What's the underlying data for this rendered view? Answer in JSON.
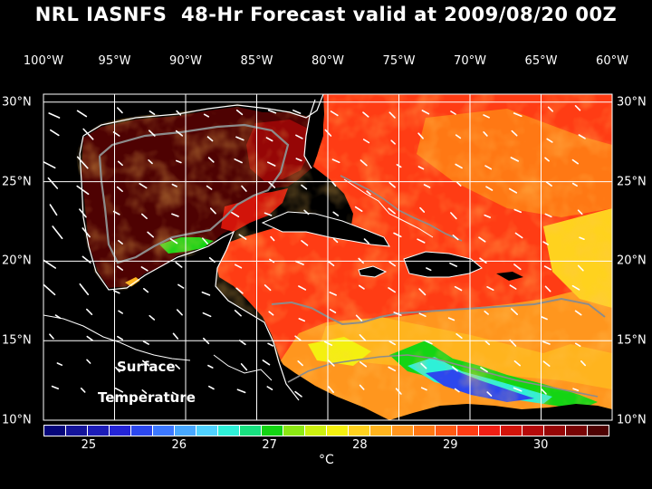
{
  "title": "NRL IASNFS  48-Hr Forecast valid at 2009/08/20 00Z",
  "map": {
    "variable_label_line1": "Surface",
    "variable_label_line2": "Temperature",
    "lon_labels": [
      "100°W",
      "95°W",
      "90°W",
      "85°W",
      "80°W",
      "75°W",
      "70°W",
      "65°W",
      "60°W"
    ],
    "lat_labels": [
      "30°N",
      "25°N",
      "20°N",
      "15°N",
      "10°N"
    ],
    "background_color": "#000000",
    "land_color": "#000000",
    "graticule_color": "#ffffff",
    "depth_contour_color": "#8c8c8c",
    "vector_color": "#ffffff"
  },
  "colorbar": {
    "min": 24.5,
    "max": 30.75,
    "step": 0.25,
    "tick_labels": [
      "25",
      "26",
      "27",
      "28",
      "29",
      "30"
    ],
    "unit": "°C",
    "colors": [
      "#06067a",
      "#14149a",
      "#1c1cb8",
      "#2424d6",
      "#2c48ee",
      "#3c78ff",
      "#48a8ff",
      "#50d2ff",
      "#2ef0d8",
      "#18e080",
      "#14d414",
      "#8ce814",
      "#ccf010",
      "#f4f010",
      "#ffd21e",
      "#ffb41e",
      "#ff961e",
      "#ff7814",
      "#ff5a14",
      "#ff3c14",
      "#f01e14",
      "#d2140a",
      "#b40a0a",
      "#960606",
      "#780404",
      "#4e0202"
    ]
  }
}
